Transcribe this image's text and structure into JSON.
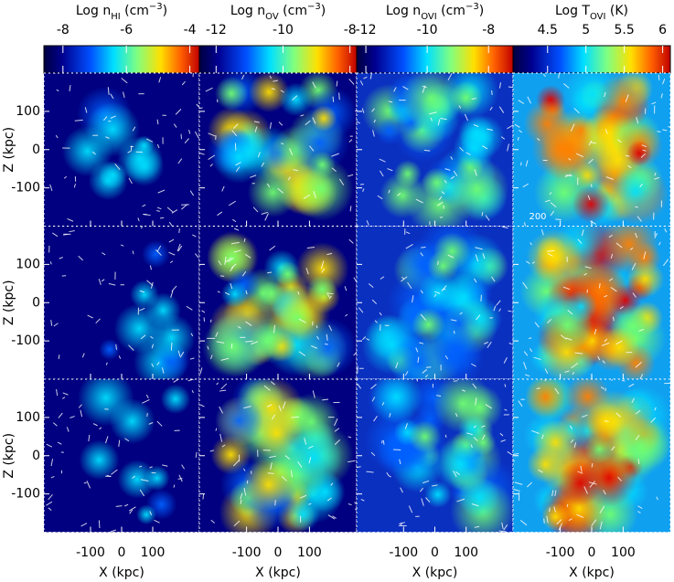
{
  "chart_data": [
    {
      "type": "colorbar",
      "title_parts": [
        {
          "text": "Log n"
        },
        {
          "text": "HI",
          "shift": "sub"
        },
        {
          "text": " (cm"
        },
        {
          "text": "−3",
          "shift": "super"
        },
        {
          "text": ")"
        }
      ],
      "lim": [
        -8.6,
        -3.7
      ],
      "ticks": [
        -8,
        -6,
        -4
      ]
    },
    {
      "type": "colorbar",
      "title_parts": [
        {
          "text": "Log n"
        },
        {
          "text": "OV",
          "shift": "sub"
        },
        {
          "text": " (cm"
        },
        {
          "text": "−3",
          "shift": "super"
        },
        {
          "text": ")"
        }
      ],
      "lim": [
        -12.5,
        -7.8
      ],
      "ticks": [
        -12,
        -10,
        -8
      ]
    },
    {
      "type": "colorbar",
      "title_parts": [
        {
          "text": "Log n"
        },
        {
          "text": "OVI",
          "shift": "sub"
        },
        {
          "text": " (cm"
        },
        {
          "text": "−3",
          "shift": "super"
        },
        {
          "text": ")"
        }
      ],
      "lim": [
        -12.3,
        -7.2
      ],
      "ticks": [
        -12,
        -10,
        -8
      ]
    },
    {
      "type": "colorbar",
      "title_parts": [
        {
          "text": "Log T"
        },
        {
          "text": "OVI",
          "shift": "sub"
        },
        {
          "text": " (K)"
        }
      ],
      "lim": [
        4.05,
        6.1
      ],
      "ticks": [
        4.5,
        5,
        5.5,
        6
      ]
    },
    {
      "type": "map-grid",
      "xlabel": "X (kpc)",
      "ylabel": "Z (kpc)",
      "xlim": [
        -250,
        250
      ],
      "ylim": [
        -200,
        200
      ],
      "xticks": [
        -100,
        0,
        100
      ],
      "yticks": [
        -100,
        0,
        100
      ],
      "annotation": "200"
    }
  ]
}
